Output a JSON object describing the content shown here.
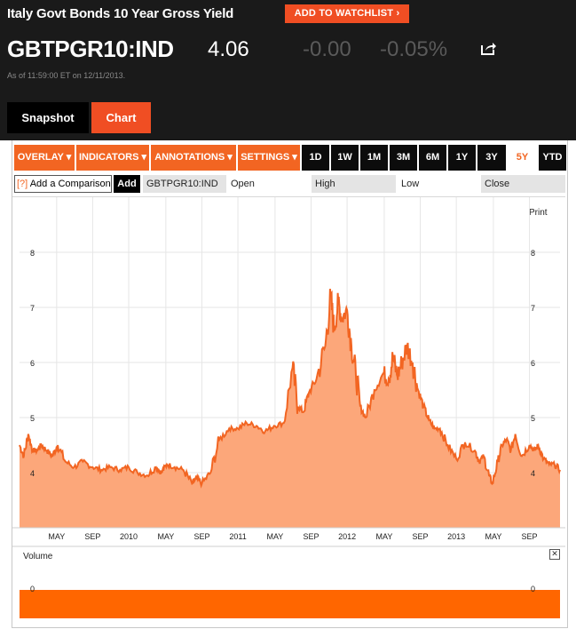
{
  "header": {
    "title": "Italy Govt Bonds 10 Year Gross Yield",
    "watchlist_label": "ADD TO WATCHLIST",
    "ticker": "GBTPGR10:IND",
    "price": "4.06",
    "change": "-0.00",
    "change_pct": "-0.05%",
    "as_of": "As of 11:59:00 ET on 12/11/2013."
  },
  "tabs": [
    {
      "label": "Snapshot"
    },
    {
      "label": "Chart"
    }
  ],
  "toolbar": {
    "menus": [
      "OVERLAY ▾",
      "INDICATORS ▾",
      "ANNOTATIONS ▾",
      "SETTINGS ▾"
    ],
    "ranges": [
      "1D",
      "1W",
      "1M",
      "3M",
      "6M",
      "1Y",
      "3Y",
      "5Y",
      "YTD"
    ],
    "active_range": "5Y"
  },
  "comparison": {
    "help": "[?]",
    "placeholder": "Add a Comparison",
    "add_label": "Add",
    "symbol": "GBTPGR10:IND",
    "fields": [
      "Open",
      "High",
      "Low",
      "Close"
    ]
  },
  "print_label": "Print",
  "volume": {
    "label": "Volume",
    "close": "✕",
    "tick": "0"
  },
  "colors": {
    "accent": "#f26522",
    "area_fill": "#fca77a",
    "line": "#f26522",
    "volume_fill": "#ff6600"
  },
  "chart_data": {
    "type": "area",
    "title": "",
    "y_ticks": [
      4,
      5,
      6,
      7,
      8
    ],
    "ylim": [
      3.0,
      9.0
    ],
    "x_tick_labels": [
      "MAY",
      "SEP",
      "2010",
      "MAY",
      "SEP",
      "2011",
      "MAY",
      "SEP",
      "2012",
      "MAY",
      "SEP",
      "2013",
      "MAY",
      "SEP"
    ],
    "x_ticks_year": [
      2009.34,
      2009.67,
      2010.0,
      2010.34,
      2010.67,
      2011.0,
      2011.34,
      2011.67,
      2012.0,
      2012.34,
      2012.67,
      2013.0,
      2013.34,
      2013.67
    ],
    "xlim": [
      2009.0,
      2013.95
    ],
    "x": [
      2009.0,
      2009.04,
      2009.08,
      2009.12,
      2009.16,
      2009.2,
      2009.25,
      2009.3,
      2009.35,
      2009.42,
      2009.5,
      2009.58,
      2009.67,
      2009.75,
      2009.83,
      2009.92,
      2010.0,
      2010.08,
      2010.17,
      2010.25,
      2010.3,
      2010.35,
      2010.42,
      2010.5,
      2010.58,
      2010.62,
      2010.67,
      2010.75,
      2010.83,
      2010.92,
      2011.0,
      2011.08,
      2011.17,
      2011.25,
      2011.33,
      2011.42,
      2011.5,
      2011.55,
      2011.6,
      2011.65,
      2011.72,
      2011.8,
      2011.85,
      2011.88,
      2011.92,
      2011.95,
      2012.0,
      2012.04,
      2012.08,
      2012.12,
      2012.17,
      2012.25,
      2012.33,
      2012.38,
      2012.42,
      2012.46,
      2012.5,
      2012.55,
      2012.6,
      2012.65,
      2012.7,
      2012.75,
      2012.8,
      2012.85,
      2012.92,
      2013.0,
      2013.08,
      2013.17,
      2013.21,
      2013.25,
      2013.3,
      2013.33,
      2013.38,
      2013.42,
      2013.46,
      2013.5,
      2013.54,
      2013.6,
      2013.67,
      2013.72,
      2013.75,
      2013.8,
      2013.85,
      2013.9,
      2013.95
    ],
    "values": [
      4.5,
      4.3,
      4.7,
      4.4,
      4.4,
      4.5,
      4.4,
      4.3,
      4.5,
      4.2,
      4.1,
      4.2,
      4.1,
      4.05,
      4.1,
      4.05,
      4.1,
      4.0,
      3.95,
      4.1,
      4.0,
      4.15,
      4.1,
      4.05,
      3.8,
      3.9,
      3.8,
      4.0,
      4.6,
      4.8,
      4.8,
      4.9,
      4.85,
      4.75,
      4.85,
      4.9,
      5.9,
      5.2,
      5.1,
      5.45,
      5.7,
      6.3,
      7.2,
      6.6,
      7.1,
      6.8,
      6.95,
      6.3,
      5.8,
      5.2,
      5.0,
      5.5,
      5.8,
      5.7,
      6.1,
      5.75,
      6.0,
      6.3,
      6.0,
      5.5,
      5.2,
      4.95,
      4.8,
      4.8,
      4.5,
      4.25,
      4.55,
      4.4,
      4.2,
      4.3,
      3.95,
      3.8,
      4.2,
      4.5,
      4.6,
      4.4,
      4.7,
      4.3,
      4.5,
      4.4,
      4.5,
      4.25,
      4.15,
      4.15,
      4.05
    ],
    "volume_values": [
      0
    ]
  }
}
